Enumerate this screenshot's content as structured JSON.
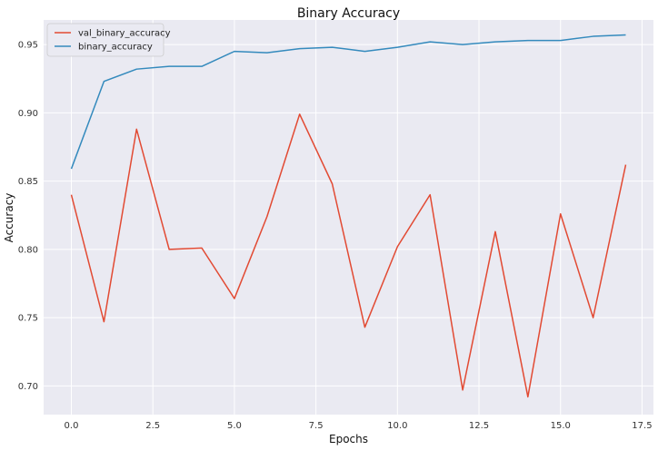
{
  "chart_data": {
    "type": "line",
    "title": "Binary Accuracy",
    "xlabel": "Epochs",
    "ylabel": "Accuracy",
    "x": [
      0,
      1,
      2,
      3,
      4,
      5,
      6,
      7,
      8,
      9,
      10,
      11,
      12,
      13,
      14,
      15,
      16,
      17
    ],
    "xlim": [
      -0.85,
      17.85
    ],
    "ylim": [
      0.679,
      0.968
    ],
    "xticks": [
      0.0,
      2.5,
      5.0,
      7.5,
      10.0,
      12.5,
      15.0,
      17.5
    ],
    "xtick_labels": [
      "0.0",
      "2.5",
      "5.0",
      "7.5",
      "10.0",
      "12.5",
      "15.0",
      "17.5"
    ],
    "yticks": [
      0.7,
      0.75,
      0.8,
      0.85,
      0.9,
      0.95
    ],
    "ytick_labels": [
      "0.70",
      "0.75",
      "0.80",
      "0.85",
      "0.90",
      "0.95"
    ],
    "grid": true,
    "legend_position": "top-left",
    "series": [
      {
        "name": "val_binary_accuracy",
        "color": "#e24a33",
        "values": [
          0.84,
          0.747,
          0.888,
          0.8,
          0.801,
          0.764,
          0.824,
          0.899,
          0.848,
          0.743,
          0.802,
          0.84,
          0.697,
          0.813,
          0.692,
          0.826,
          0.75,
          0.862
        ]
      },
      {
        "name": "binary_accuracy",
        "color": "#348abd",
        "values": [
          0.859,
          0.923,
          0.932,
          0.934,
          0.934,
          0.945,
          0.944,
          0.947,
          0.948,
          0.945,
          0.948,
          0.952,
          0.95,
          0.952,
          0.953,
          0.953,
          0.956,
          0.957
        ]
      }
    ],
    "colors": {
      "plot_background": "#eaeaf2",
      "grid": "#ffffff"
    }
  }
}
